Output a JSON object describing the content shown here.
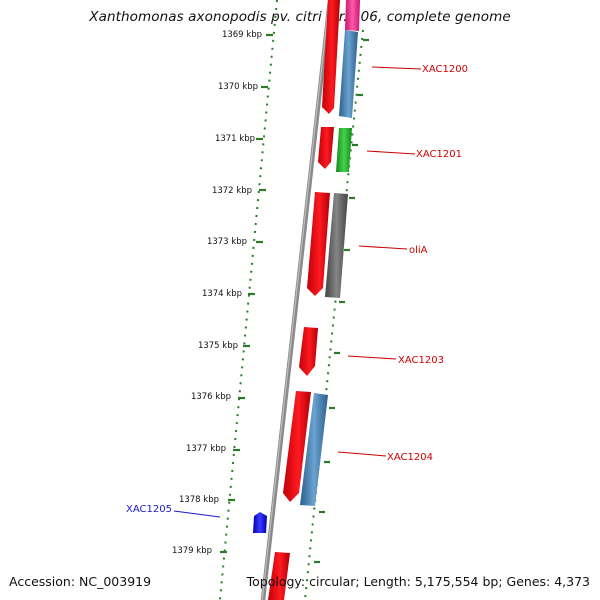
{
  "header": {
    "title": "Xanthomonas axonopodis pv. citri str. 306, complete genome"
  },
  "footer": {
    "accession": "Accession: NC_003919",
    "stats": "Topology: circular; Length: 5,175,554 bp; Genes: 4,373"
  },
  "ruler": {
    "labels": [
      "1369 kbp",
      "1370 kbp",
      "1371 kbp",
      "1372 kbp",
      "1373 kbp",
      "1374 kbp",
      "1375 kbp",
      "1376 kbp",
      "1377 kbp",
      "1378 kbp",
      "1379 kbp"
    ]
  },
  "colors": {
    "backbone": "#8a8a8a",
    "ruler_tick": "#2a7a2a",
    "gene_red": "#e8141a",
    "gene_blue": "#3b78ae",
    "gene_green": "#22b02a",
    "gene_gray": "#5f5f5f",
    "gene_magenta": "#ee2a8a",
    "gene_darkblue": "#1414e8",
    "label_red": "#cc0000",
    "label_blue": "#1a1acc"
  },
  "genes": [
    {
      "name": "XAC1200",
      "color": "label_red"
    },
    {
      "name": "XAC1201",
      "color": "label_red"
    },
    {
      "name": "oliA",
      "color": "label_red"
    },
    {
      "name": "XAC1203",
      "color": "label_red"
    },
    {
      "name": "XAC1204",
      "color": "label_red"
    },
    {
      "name": "XAC1205",
      "color": "label_blue"
    }
  ]
}
